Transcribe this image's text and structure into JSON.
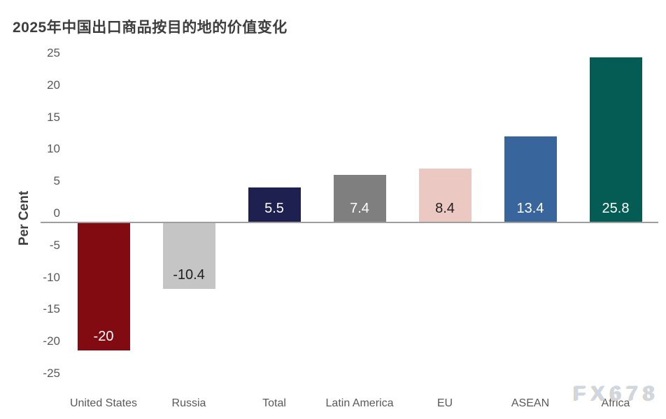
{
  "title": "2025年中国出口商品按目的地的价值变化",
  "watermark": "FX678",
  "chart_data": {
    "type": "bar",
    "title": "2025年中国出口商品按目的地的价值变化",
    "xlabel": "",
    "ylabel": "Per Cent",
    "ylim": [
      -25,
      25
    ],
    "ytick_step": 5,
    "ytick_labels": [
      "25",
      "20",
      "15",
      "10",
      "5",
      "0",
      "-5",
      "-10",
      "-15",
      "-20",
      "-25"
    ],
    "grid": false,
    "legend": null,
    "categories": [
      "United States",
      "Russia",
      "Total",
      "Latin America",
      "EU",
      "ASEAN",
      "Africa"
    ],
    "values": [
      -20,
      -10.4,
      5.5,
      7.4,
      8.4,
      13.4,
      25.8
    ],
    "value_labels": [
      "-20",
      "-10.4",
      "5.5",
      "7.4",
      "8.4",
      "13.4",
      "25.8"
    ],
    "bar_colors": [
      "#810b10",
      "#c5c5c5",
      "#1e2150",
      "#7f7f7f",
      "#ecc8c3",
      "#38659b",
      "#055c55"
    ],
    "value_label_colors": [
      "#ffffff",
      "#1f1f1f",
      "#ffffff",
      "#ffffff",
      "#1f1f1f",
      "#ffffff",
      "#ffffff"
    ],
    "axis_color": "#9e9e9e",
    "text_color": "#595959",
    "title_color": "#3d3d3d"
  }
}
